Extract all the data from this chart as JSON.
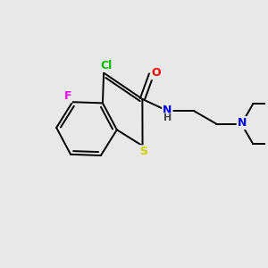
{
  "background_color": "#e8e8e8",
  "bond_color": "#000000",
  "atom_colors": {
    "F": "#ff00ff",
    "Cl": "#00bb00",
    "S": "#cccc00",
    "O": "#ff0000",
    "N": "#0000ee",
    "H": "#000000"
  },
  "figsize": [
    3.0,
    3.0
  ],
  "dpi": 100,
  "lw": 1.4
}
